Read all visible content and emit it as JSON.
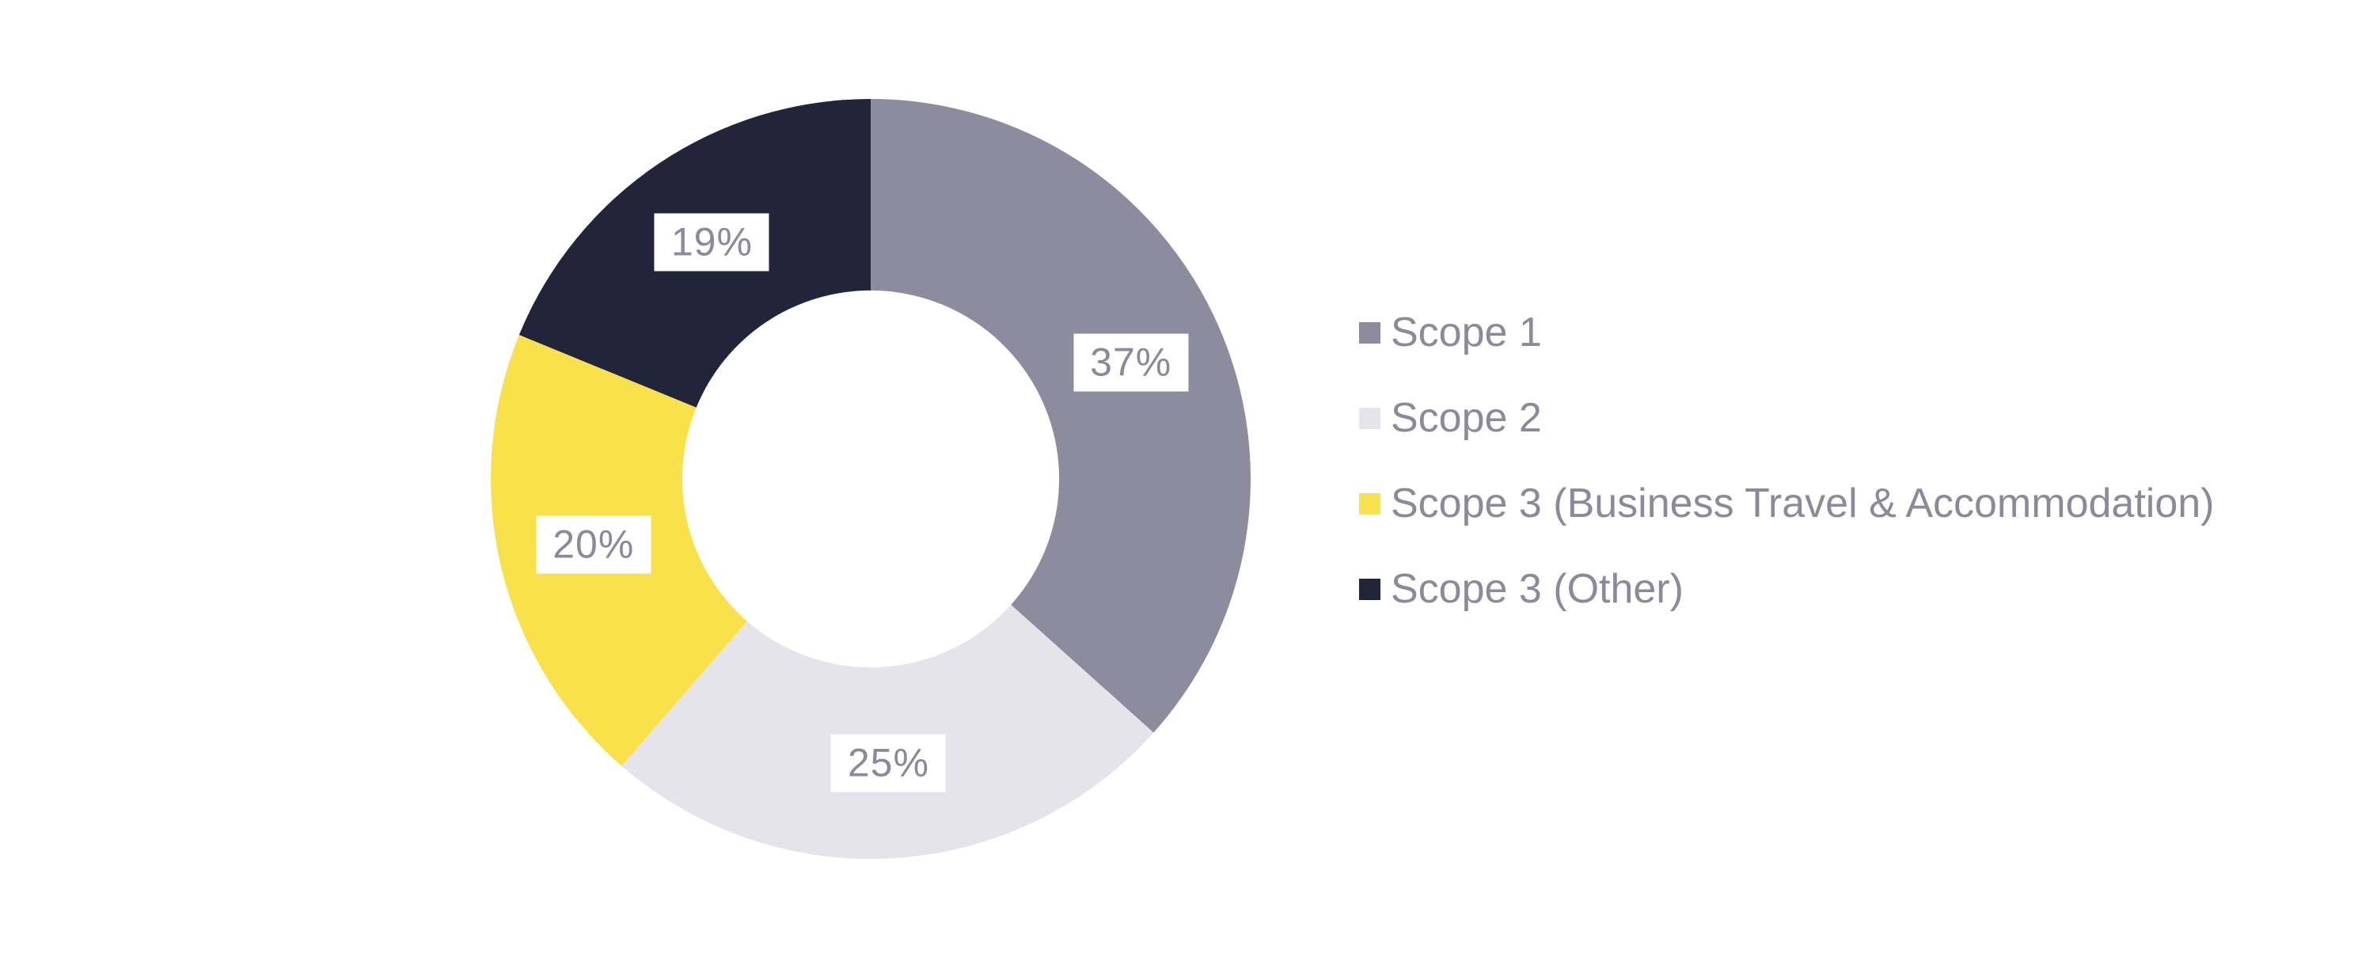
{
  "page": {
    "background": "#ffffff"
  },
  "chart_data": {
    "type": "pie",
    "variant": "donut",
    "title": "",
    "categories": [
      "Scope 1",
      "Scope 2",
      "Scope 3 (Business Travel & Accommodation)",
      "Scope 3 (Other)"
    ],
    "values": [
      37,
      25,
      20,
      19
    ],
    "labels": [
      "37%",
      "25%",
      "20%",
      "19%"
    ],
    "unit": "%",
    "colors": [
      "#8c8c9e",
      "#e4e4ea",
      "#f8e14b",
      "#222439"
    ],
    "slice_label_text_color": "#8a8a9c",
    "slice_label_background": "#ffffff",
    "start_angle_deg": 0,
    "direction": "clockwise",
    "hole_ratio": 0.496,
    "gridlines": false,
    "legend": {
      "position": "right",
      "text_color": "#8a8a9c"
    }
  }
}
